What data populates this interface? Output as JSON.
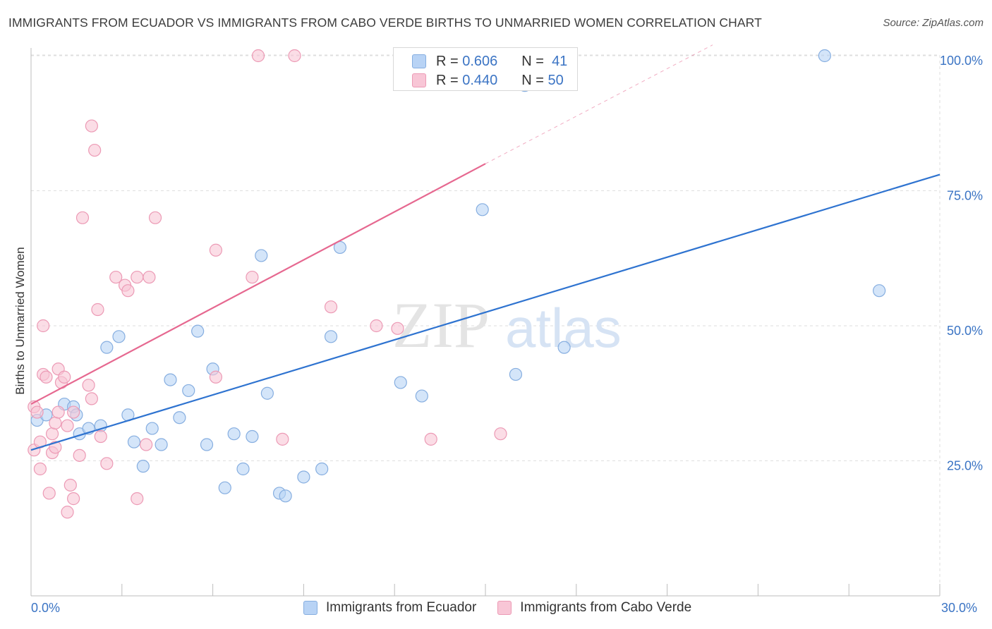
{
  "title": "IMMIGRANTS FROM ECUADOR VS IMMIGRANTS FROM CABO VERDE BIRTHS TO UNMARRIED WOMEN CORRELATION CHART",
  "source": "Source: ZipAtlas.com",
  "watermark": {
    "zip": "ZIP",
    "atlas": "atlas"
  },
  "legend": {
    "r_label": "R =",
    "n_label": "N =",
    "series": [
      {
        "r": "0.606",
        "n": "41"
      },
      {
        "r": "0.440",
        "n": "50"
      }
    ]
  },
  "bottom_legend": [
    "Immigrants from Ecuador",
    "Immigrants from Cabo Verde"
  ],
  "colors": {
    "ecuador_fill": "#b8d3f5",
    "ecuador_stroke": "#86aee0",
    "ecuador_line": "#2e73d0",
    "caboverde_fill": "#f8c6d6",
    "caboverde_stroke": "#ec9ab5",
    "caboverde_line": "#e66890",
    "axis_text": "#3b74c4",
    "grid": "#dedede"
  },
  "chart_data": {
    "type": "scatter",
    "title": "IMMIGRANTS FROM ECUADOR VS IMMIGRANTS FROM CABO VERDE BIRTHS TO UNMARRIED WOMEN CORRELATION CHART",
    "xlabel": "",
    "ylabel": "Births to Unmarried Women",
    "xlim": [
      0,
      30
    ],
    "ylim": [
      0,
      102
    ],
    "x_tick_labels": [
      "0.0%",
      "30.0%"
    ],
    "y_ticks": [
      25,
      50,
      75,
      100
    ],
    "y_tick_labels": [
      "25.0%",
      "50.0%",
      "75.0%",
      "100.0%"
    ],
    "grid": true,
    "legend_position": "top-center",
    "series": [
      {
        "name": "Immigrants from Ecuador",
        "R": 0.606,
        "N": 41,
        "trend": {
          "x": [
            0,
            30
          ],
          "y": [
            27.0,
            78.0
          ],
          "dashed_extension": false
        },
        "points": [
          [
            0.2,
            32.5
          ],
          [
            0.5,
            33.5
          ],
          [
            1.1,
            35.5
          ],
          [
            1.4,
            35.0
          ],
          [
            1.5,
            33.5
          ],
          [
            1.6,
            30.0
          ],
          [
            1.9,
            31.0
          ],
          [
            2.3,
            31.5
          ],
          [
            2.5,
            46.0
          ],
          [
            2.9,
            48.0
          ],
          [
            3.2,
            33.5
          ],
          [
            3.4,
            28.5
          ],
          [
            3.7,
            24.0
          ],
          [
            4.0,
            31.0
          ],
          [
            4.3,
            28.0
          ],
          [
            4.6,
            40.0
          ],
          [
            4.9,
            33.0
          ],
          [
            5.2,
            38.0
          ],
          [
            5.5,
            49.0
          ],
          [
            5.8,
            28.0
          ],
          [
            6.0,
            42.0
          ],
          [
            6.4,
            20.0
          ],
          [
            6.7,
            30.0
          ],
          [
            7.0,
            23.5
          ],
          [
            7.3,
            29.5
          ],
          [
            7.6,
            63.0
          ],
          [
            7.8,
            37.5
          ],
          [
            8.2,
            19.0
          ],
          [
            8.4,
            18.5
          ],
          [
            9.0,
            22.0
          ],
          [
            9.6,
            23.5
          ],
          [
            9.9,
            48.0
          ],
          [
            10.2,
            64.5
          ],
          [
            12.2,
            39.5
          ],
          [
            12.9,
            37.0
          ],
          [
            14.9,
            71.5
          ],
          [
            16.0,
            41.0
          ],
          [
            16.3,
            94.5
          ],
          [
            17.6,
            46.0
          ],
          [
            26.2,
            100.0
          ],
          [
            28.0,
            56.5
          ]
        ]
      },
      {
        "name": "Immigrants from Cabo Verde",
        "R": 0.44,
        "N": 50,
        "trend": {
          "x": [
            0,
            15
          ],
          "y": [
            35.5,
            80.0
          ],
          "dashed_to": [
            22.5,
            102.0
          ]
        },
        "points": [
          [
            0.1,
            35.0
          ],
          [
            0.1,
            27.0
          ],
          [
            0.2,
            34.0
          ],
          [
            0.3,
            23.5
          ],
          [
            0.3,
            28.5
          ],
          [
            0.4,
            50.0
          ],
          [
            0.4,
            41.0
          ],
          [
            0.5,
            40.5
          ],
          [
            0.6,
            19.0
          ],
          [
            0.7,
            30.0
          ],
          [
            0.7,
            26.5
          ],
          [
            0.8,
            32.0
          ],
          [
            0.8,
            27.5
          ],
          [
            0.9,
            34.0
          ],
          [
            0.9,
            42.0
          ],
          [
            1.0,
            39.5
          ],
          [
            1.1,
            40.5
          ],
          [
            1.2,
            31.5
          ],
          [
            1.2,
            15.5
          ],
          [
            1.3,
            20.5
          ],
          [
            1.4,
            34.0
          ],
          [
            1.4,
            18.0
          ],
          [
            1.6,
            26.0
          ],
          [
            1.7,
            70.0
          ],
          [
            1.9,
            39.0
          ],
          [
            2.0,
            36.5
          ],
          [
            2.0,
            87.0
          ],
          [
            2.1,
            82.5
          ],
          [
            2.2,
            53.0
          ],
          [
            2.3,
            29.5
          ],
          [
            2.5,
            24.5
          ],
          [
            2.8,
            59.0
          ],
          [
            3.1,
            57.5
          ],
          [
            3.2,
            56.5
          ],
          [
            3.5,
            59.0
          ],
          [
            3.5,
            18.0
          ],
          [
            3.8,
            28.0
          ],
          [
            3.9,
            59.0
          ],
          [
            4.1,
            70.0
          ],
          [
            6.1,
            64.0
          ],
          [
            6.1,
            40.5
          ],
          [
            7.3,
            59.0
          ],
          [
            7.5,
            100.0
          ],
          [
            8.3,
            29.0
          ],
          [
            8.7,
            100.0
          ],
          [
            9.9,
            53.5
          ],
          [
            11.4,
            50.0
          ],
          [
            12.1,
            49.5
          ],
          [
            13.2,
            29.0
          ],
          [
            15.5,
            30.0
          ]
        ]
      }
    ]
  }
}
